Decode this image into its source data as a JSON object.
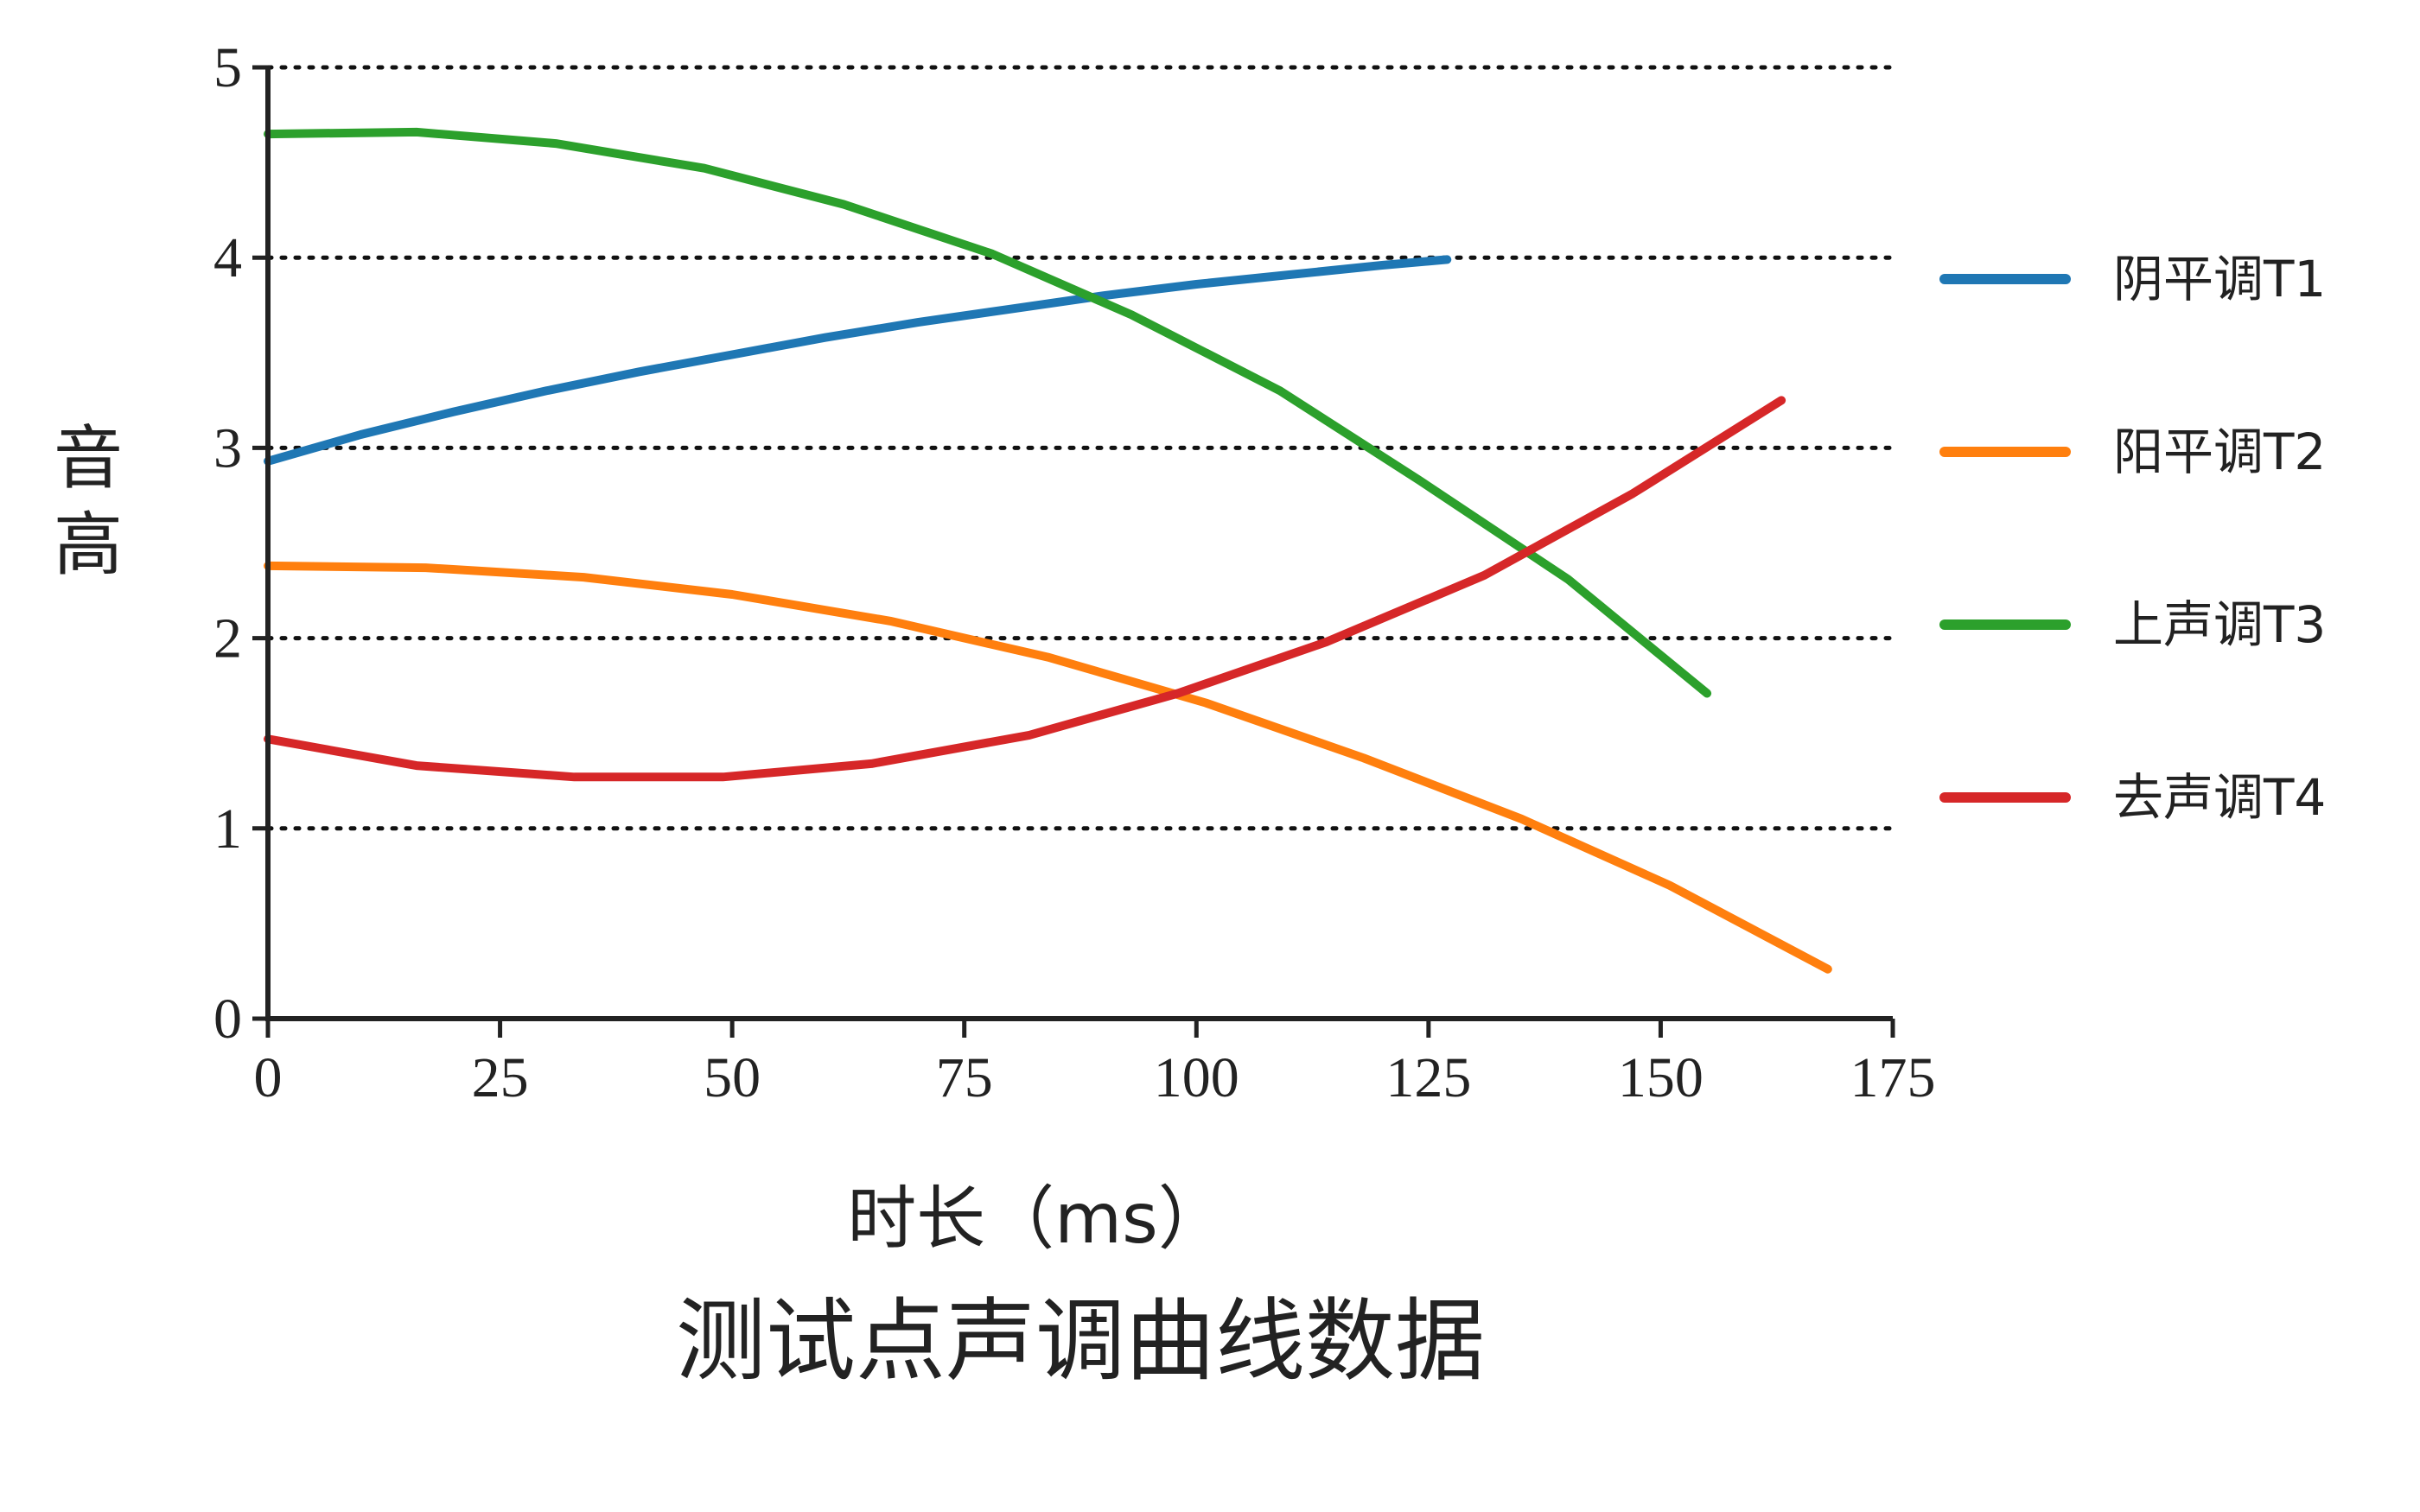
{
  "chart_data": {
    "type": "line",
    "title": "测试点声调曲线数据",
    "xlabel": "时长（ms）",
    "ylabel": "音高",
    "xlim": [
      0,
      175
    ],
    "ylim": [
      0,
      5
    ],
    "xticks": [
      0,
      25,
      50,
      75,
      100,
      125,
      150,
      175
    ],
    "yticks": [
      0,
      1,
      2,
      3,
      4,
      5
    ],
    "grid": "horizontal dotted at y ticks",
    "legend_position": "right",
    "series": [
      {
        "name": "阴平调T1",
        "color": "#1f77b4",
        "x": [
          0,
          10,
          20,
          30,
          40,
          50,
          60,
          70,
          80,
          90,
          100,
          110,
          120,
          127
        ],
        "y": [
          2.93,
          3.07,
          3.19,
          3.3,
          3.4,
          3.49,
          3.58,
          3.66,
          3.73,
          3.8,
          3.86,
          3.91,
          3.96,
          3.99
        ]
      },
      {
        "name": "阳平调T2",
        "color": "#ff7f0e",
        "x": [
          0,
          17,
          34,
          50,
          67,
          84,
          101,
          118,
          135,
          151,
          168
        ],
        "y": [
          2.38,
          2.37,
          2.32,
          2.23,
          2.09,
          1.9,
          1.66,
          1.37,
          1.05,
          0.7,
          0.26
        ]
      },
      {
        "name": "上声调T3",
        "color": "#2ca02c",
        "x": [
          0,
          16,
          31,
          47,
          62,
          78,
          93,
          109,
          124,
          140,
          155
        ],
        "y": [
          4.65,
          4.66,
          4.6,
          4.47,
          4.28,
          4.02,
          3.7,
          3.3,
          2.83,
          2.31,
          1.71
        ]
      },
      {
        "name": "去声调T4",
        "color": "#d62728",
        "x": [
          0,
          16,
          33,
          49,
          65,
          82,
          98,
          114,
          131,
          147,
          163
        ],
        "y": [
          1.47,
          1.33,
          1.27,
          1.27,
          1.34,
          1.49,
          1.71,
          1.98,
          2.33,
          2.76,
          3.25
        ]
      }
    ]
  }
}
